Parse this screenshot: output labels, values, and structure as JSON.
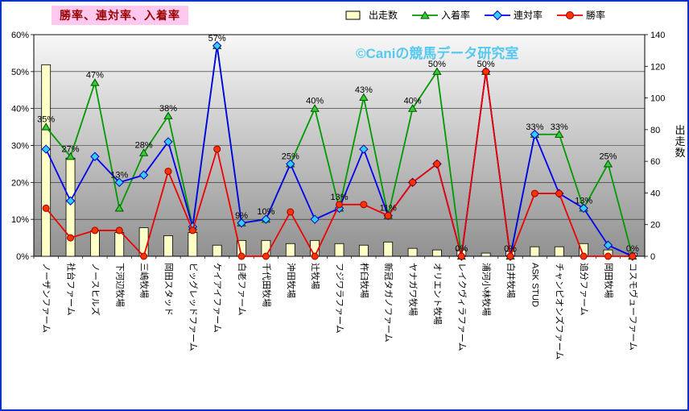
{
  "watermark": {
    "text": "©Caniの競馬データ研究室",
    "color": "#45c6ee"
  },
  "styles": {
    "title_color": "#990000",
    "title_background": "#ffc8ee",
    "frame_border": "#0033cc"
  },
  "chart_data": {
    "type": "combo-bar-line",
    "title": "勝率、連対率、入着率",
    "categories": [
      "ノーザンファーム",
      "社台ファーム",
      "ノースヒルズ",
      "下河辺牧場",
      "三嶋牧場",
      "岡田スタッド",
      "ビッグレッドファーム",
      "ケイアイファーム",
      "白老ファーム",
      "千代田牧場",
      "沖田牧場",
      "辻牧場",
      "フジワラファーム",
      "杵臼牧場",
      "新冠タガノファーム",
      "ヤナガワ牧場",
      "オリエント牧場",
      "レイクヴィラファーム",
      "浦河小林牧場",
      "白井牧場",
      "ASK STUD",
      "チャンピオンズファーム",
      "追分ファーム",
      "岡田牧場",
      "コスモヴューファーム"
    ],
    "bar_series": {
      "name": "出走数",
      "axis": "right",
      "color": "#ffffc8",
      "border": "#000000",
      "values": [
        121,
        62,
        16,
        15,
        18,
        13,
        15,
        7,
        10,
        10,
        8,
        10,
        8,
        7,
        9,
        5,
        4,
        4,
        2,
        3,
        6,
        6,
        8,
        4,
        2
      ]
    },
    "line_series": [
      {
        "name": "入着率",
        "marker": "triangle",
        "line_color": "#009900",
        "marker_fill": "#33cc33",
        "marker_stroke": "#005500",
        "values": [
          35,
          27,
          47,
          13,
          28,
          38,
          8,
          57,
          9,
          10,
          25,
          40,
          13,
          43,
          11,
          40,
          50,
          0,
          50,
          0,
          33,
          33,
          13,
          25,
          0
        ]
      },
      {
        "name": "連対率",
        "marker": "diamond",
        "line_color": "#0000ee",
        "marker_fill": "#33ccff",
        "marker_stroke": "#0000bb",
        "values": [
          29,
          15,
          27,
          20,
          22,
          31,
          8,
          57,
          9,
          10,
          25,
          10,
          13,
          29,
          11,
          20,
          25,
          0,
          50,
          0,
          33,
          17,
          13,
          3,
          0
        ]
      },
      {
        "name": "勝率",
        "marker": "circle",
        "line_color": "#ee0000",
        "marker_fill": "#ff3300",
        "marker_stroke": "#990000",
        "values": [
          13,
          5,
          7,
          7,
          0,
          23,
          7,
          29,
          0,
          0,
          12,
          0,
          14,
          14,
          11,
          20,
          25,
          0,
          50,
          0,
          17,
          17,
          0,
          0,
          0
        ]
      }
    ],
    "point_labels": [
      "35%",
      "27%",
      "47%",
      "13%",
      "28%",
      "38%",
      null,
      "57%",
      "9%",
      "10%",
      "25%",
      "40%",
      "13%",
      "43%",
      "11%",
      "40%",
      "50%",
      "0%",
      "50%",
      "0%",
      "33%",
      "33%",
      "13%",
      "25%",
      "0%"
    ],
    "left_axis": {
      "min": 0,
      "max": 60,
      "step": 10,
      "suffix": "%"
    },
    "right_axis": {
      "title": "出走数",
      "min": 0,
      "max": 140,
      "step": 20
    },
    "plot": {
      "bg_top": "#f8f8f8",
      "bg_bottom": "#919191",
      "grid_color": "#222222"
    },
    "legend_position": "top"
  }
}
